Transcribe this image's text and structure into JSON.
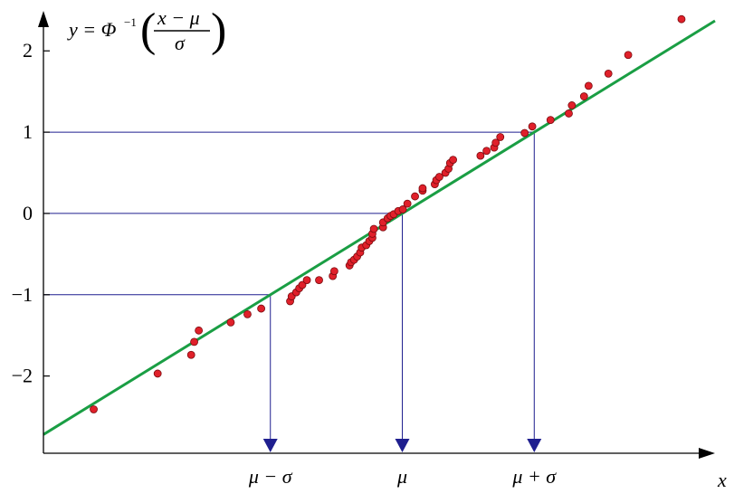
{
  "chart_data": {
    "type": "scatter",
    "title": "",
    "ylabel": {
      "prefix": "y = Φ",
      "sup": "−1",
      "numerator": "x − μ",
      "denominator": "σ"
    },
    "xlabel": "x",
    "y_ticks": [
      -2,
      -1,
      0,
      1,
      2
    ],
    "y_tick_labels": [
      "−2",
      "−1",
      "0",
      "1",
      "2"
    ],
    "x_marker_labels": [
      "μ − σ",
      "μ",
      "μ + σ"
    ],
    "mu": 0,
    "sigma": 1,
    "xlim": [
      -2.16,
      2.25
    ],
    "ylim": [
      -2.95,
      2.47
    ],
    "fit_line": {
      "x": [
        -2.16,
        2.25
      ],
      "y": [
        -2.72,
        2.37
      ]
    },
    "reference_levels_y": [
      -1,
      0,
      1
    ],
    "points": [
      {
        "x": -1.83,
        "y": -2.41
      },
      {
        "x": -1.41,
        "y": -1.97
      },
      {
        "x": -1.19,
        "y": -1.74
      },
      {
        "x": -1.17,
        "y": -1.58
      },
      {
        "x": -1.14,
        "y": -1.44
      },
      {
        "x": -0.93,
        "y": -1.34
      },
      {
        "x": -0.82,
        "y": -1.24
      },
      {
        "x": -0.73,
        "y": -1.17
      },
      {
        "x": -0.54,
        "y": -1.08
      },
      {
        "x": -0.53,
        "y": -1.02
      },
      {
        "x": -0.5,
        "y": -0.97
      },
      {
        "x": -0.48,
        "y": -0.92
      },
      {
        "x": -0.46,
        "y": -0.88
      },
      {
        "x": -0.43,
        "y": -0.82
      },
      {
        "x": -0.35,
        "y": -0.82
      },
      {
        "x": -0.26,
        "y": -0.77
      },
      {
        "x": -0.25,
        "y": -0.71
      },
      {
        "x": -0.15,
        "y": -0.64
      },
      {
        "x": -0.14,
        "y": -0.6
      },
      {
        "x": -0.12,
        "y": -0.57
      },
      {
        "x": -0.1,
        "y": -0.53
      },
      {
        "x": -0.08,
        "y": -0.48
      },
      {
        "x": -0.07,
        "y": -0.42
      },
      {
        "x": -0.04,
        "y": -0.39
      },
      {
        "x": -0.02,
        "y": -0.34
      },
      {
        "x": 0.0,
        "y": -0.3
      },
      {
        "x": 0.0,
        "y": -0.25
      },
      {
        "x": 0.01,
        "y": -0.19
      },
      {
        "x": 0.07,
        "y": -0.17
      },
      {
        "x": 0.07,
        "y": -0.11
      },
      {
        "x": 0.1,
        "y": -0.06
      },
      {
        "x": 0.12,
        "y": -0.03
      },
      {
        "x": 0.14,
        "y": -0.01
      },
      {
        "x": 0.17,
        "y": 0.03
      },
      {
        "x": 0.2,
        "y": 0.05
      },
      {
        "x": 0.23,
        "y": 0.12
      },
      {
        "x": 0.28,
        "y": 0.21
      },
      {
        "x": 0.33,
        "y": 0.28
      },
      {
        "x": 0.33,
        "y": 0.31
      },
      {
        "x": 0.41,
        "y": 0.36
      },
      {
        "x": 0.42,
        "y": 0.41
      },
      {
        "x": 0.44,
        "y": 0.45
      },
      {
        "x": 0.48,
        "y": 0.5
      },
      {
        "x": 0.5,
        "y": 0.55
      },
      {
        "x": 0.51,
        "y": 0.62
      },
      {
        "x": 0.53,
        "y": 0.66
      },
      {
        "x": 0.71,
        "y": 0.71
      },
      {
        "x": 0.75,
        "y": 0.77
      },
      {
        "x": 0.8,
        "y": 0.81
      },
      {
        "x": 0.81,
        "y": 0.87
      },
      {
        "x": 0.84,
        "y": 0.94
      },
      {
        "x": 1.0,
        "y": 0.99
      },
      {
        "x": 1.05,
        "y": 1.07
      },
      {
        "x": 1.17,
        "y": 1.15
      },
      {
        "x": 1.29,
        "y": 1.23
      },
      {
        "x": 1.31,
        "y": 1.33
      },
      {
        "x": 1.39,
        "y": 1.44
      },
      {
        "x": 1.42,
        "y": 1.57
      },
      {
        "x": 1.55,
        "y": 1.72
      },
      {
        "x": 1.68,
        "y": 1.95
      },
      {
        "x": 2.03,
        "y": 2.39
      }
    ],
    "colors": {
      "fit_line": "#1a9e44",
      "point_fill": "#e0202a",
      "point_stroke": "#7a0a0e",
      "reference_lines": "#1f1f8f",
      "axis": "#000000"
    }
  }
}
